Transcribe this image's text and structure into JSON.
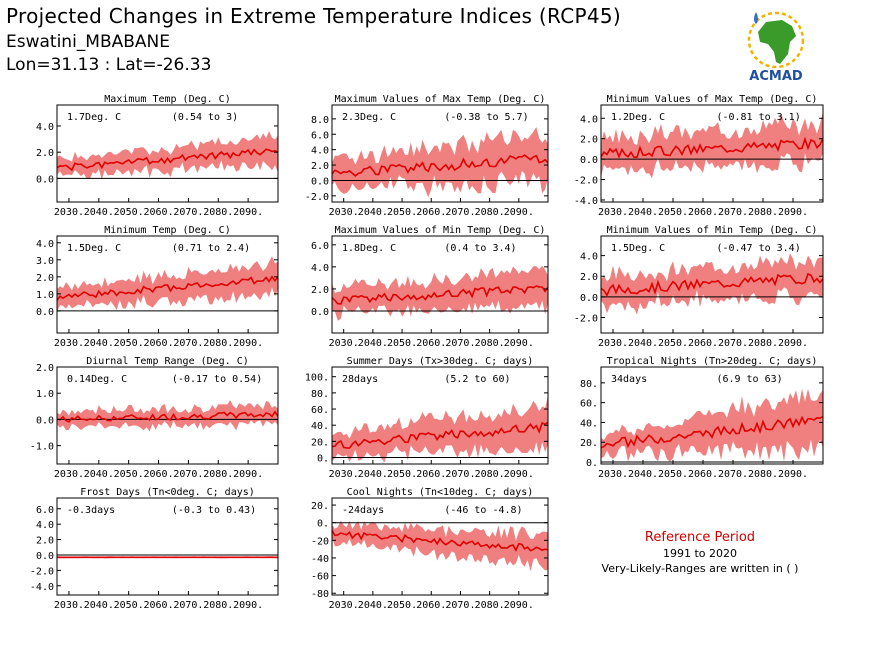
{
  "header": {
    "title": "Projected Changes in Extreme Temperature Indices (RCP45)",
    "location": "Eswatini_MBABANE",
    "coords": "Lon=31.13 : Lat=-26.33"
  },
  "logo": {
    "text": "ACMAD",
    "colors": {
      "africa": "#3a9a2a",
      "sun": "#f0b400",
      "text": "#1f4fa0"
    }
  },
  "reference": {
    "title": "Reference Period",
    "period": "1991 to 2020",
    "note": "Very-Likely-Ranges are written in ( )"
  },
  "colors": {
    "band": "#f08080",
    "line": "#e00000",
    "axis": "#000000"
  },
  "chart_data": [
    {
      "type": "area",
      "title": "Maximum Temp (Deg. C)",
      "stat": "1.7Deg. C",
      "range": "(0.54 to 3)",
      "yticks": [
        0,
        2,
        4
      ],
      "ytick_labels": [
        "0.0",
        "2.0",
        "4.0"
      ],
      "ylim": [
        -1.8,
        5.6
      ],
      "xticks": [
        "2030.",
        "2040.",
        "2050.",
        "2060.",
        "2070.",
        "2080.",
        "2090."
      ],
      "xlim": [
        2026,
        2100
      ],
      "mean": {
        "start": 0.8,
        "end": 2.1
      },
      "band_half": {
        "start": 0.6,
        "end": 1.1
      },
      "noise": 0.25,
      "seed": 1
    },
    {
      "type": "area",
      "title": "Maximum Values of Max Temp (Deg. C)",
      "stat": "2.3Deg. C",
      "range": "(-0.38 to 5.7)",
      "yticks": [
        -2,
        0,
        2,
        4,
        6,
        8
      ],
      "ytick_labels": [
        "-2.0",
        "0.0",
        "2.0",
        "4.0",
        "6.0",
        "8.0"
      ],
      "ylim": [
        -2.8,
        9.8
      ],
      "xticks": [
        "2030.",
        "2040.",
        "2050.",
        "2060.",
        "2070.",
        "2080.",
        "2090."
      ],
      "xlim": [
        2026,
        2100
      ],
      "mean": {
        "start": 1.0,
        "end": 2.8
      },
      "band_half": {
        "start": 2.0,
        "end": 3.0
      },
      "noise": 0.7,
      "seed": 2
    },
    {
      "type": "area",
      "title": "Minimum Values of Max Temp (Deg. C)",
      "stat": "1.2Deg. C",
      "range": "(-0.81 to 3.1)",
      "yticks": [
        -4,
        -2,
        0,
        2,
        4
      ],
      "ytick_labels": [
        "-4.0",
        "-2.0",
        "0.0",
        "2.0",
        "4.0"
      ],
      "ylim": [
        -4.2,
        5.3
      ],
      "xticks": [
        "2030.",
        "2040.",
        "2050.",
        "2060.",
        "2070.",
        "2080.",
        "2090."
      ],
      "xlim": [
        2026,
        2100
      ],
      "mean": {
        "start": 0.5,
        "end": 1.6
      },
      "band_half": {
        "start": 1.5,
        "end": 2.0
      },
      "noise": 0.5,
      "seed": 3
    },
    {
      "type": "area",
      "title": "Minimum Temp (Deg. C)",
      "stat": "1.5Deg. C",
      "range": "(0.71 to 2.4)",
      "yticks": [
        0,
        1,
        2,
        3,
        4
      ],
      "ytick_labels": [
        "0.0",
        "1.0",
        "2.0",
        "3.0",
        "4.0"
      ],
      "ylim": [
        -1.3,
        4.4
      ],
      "xticks": [
        "2030.",
        "2040.",
        "2050.",
        "2060.",
        "2070.",
        "2080.",
        "2090."
      ],
      "xlim": [
        2026,
        2100
      ],
      "mean": {
        "start": 0.8,
        "end": 1.9
      },
      "band_half": {
        "start": 0.6,
        "end": 0.9
      },
      "noise": 0.2,
      "seed": 4
    },
    {
      "type": "area",
      "title": "Maximum Values of Min Temp (Deg. C)",
      "stat": "1.8Deg. C",
      "range": "(0.4 to 3.4)",
      "yticks": [
        0,
        2,
        4,
        6
      ],
      "ytick_labels": [
        "0.0",
        "2.0",
        "4.0",
        "6.0"
      ],
      "ylim": [
        -2.0,
        6.8
      ],
      "xticks": [
        "2030.",
        "2040.",
        "2050.",
        "2060.",
        "2070.",
        "2080.",
        "2090."
      ],
      "xlim": [
        2026,
        2100
      ],
      "mean": {
        "start": 0.9,
        "end": 2.1
      },
      "band_half": {
        "start": 1.1,
        "end": 1.6
      },
      "noise": 0.4,
      "seed": 5
    },
    {
      "type": "area",
      "title": "Minimum Values of Min Temp (Deg. C)",
      "stat": "1.5Deg. C",
      "range": "(-0.47 to 3.4)",
      "yticks": [
        -2,
        0,
        2,
        4
      ],
      "ytick_labels": [
        "-2.0",
        "0.0",
        "2.0",
        "4.0"
      ],
      "ylim": [
        -3.5,
        5.9
      ],
      "xticks": [
        "2030.",
        "2040.",
        "2050.",
        "2060.",
        "2070.",
        "2080.",
        "2090."
      ],
      "xlim": [
        2026,
        2100
      ],
      "mean": {
        "start": 0.6,
        "end": 1.9
      },
      "band_half": {
        "start": 1.4,
        "end": 1.8
      },
      "noise": 0.5,
      "seed": 6
    },
    {
      "type": "area",
      "title": "Diurnal Temp Range (Deg. C)",
      "stat": "0.14Deg. C",
      "range": "(-0.17 to 0.54)",
      "yticks": [
        -1,
        0,
        1,
        2
      ],
      "ytick_labels": [
        "-1.0",
        "0.0",
        "1.0",
        "2.0"
      ],
      "ylim": [
        -1.7,
        2.0
      ],
      "xticks": [
        "2030.",
        "2040.",
        "2050.",
        "2060.",
        "2070.",
        "2080.",
        "2090."
      ],
      "xlim": [
        2026,
        2100
      ],
      "mean": {
        "start": 0.0,
        "end": 0.2
      },
      "band_half": {
        "start": 0.3,
        "end": 0.35
      },
      "noise": 0.12,
      "seed": 7
    },
    {
      "type": "area",
      "title": "Summer Days (Tx>30deg. C; days)",
      "stat": "28days",
      "range": "(5.2 to 60)",
      "yticks": [
        0,
        20,
        40,
        60,
        80,
        100
      ],
      "ytick_labels": [
        "0.",
        "20.",
        "40.",
        "60.",
        "80.",
        "100."
      ],
      "ylim": [
        -8,
        112
      ],
      "xticks": [
        "2030.",
        "2040.",
        "2050.",
        "2060.",
        "2070.",
        "2080.",
        "2090."
      ],
      "xlim": [
        2026,
        2100
      ],
      "mean": {
        "start": 15,
        "end": 38
      },
      "band_half": {
        "start": 14,
        "end": 26
      },
      "noise": 6,
      "seed": 8
    },
    {
      "type": "area",
      "title": "Tropical Nights (Tn>20deg. C; days)",
      "stat": "34days",
      "range": "(6.9 to 63)",
      "yticks": [
        0,
        20,
        40,
        60,
        80
      ],
      "ytick_labels": [
        "0.",
        "20.",
        "40.",
        "60.",
        "80."
      ],
      "ylim": [
        -2,
        96
      ],
      "xticks": [
        "2030.",
        "2040.",
        "2050.",
        "2060.",
        "2070.",
        "2080.",
        "2090."
      ],
      "xlim": [
        2026,
        2100
      ],
      "mean": {
        "start": 17,
        "end": 43
      },
      "band_half": {
        "start": 9,
        "end": 28
      },
      "noise": 5,
      "seed": 9
    },
    {
      "type": "area",
      "title": "Frost Days (Tn<0deg. C; days)",
      "stat": "-0.3days",
      "range": "(-0.3 to 0.43)",
      "yticks": [
        -4,
        -2,
        0,
        2,
        4,
        6
      ],
      "ytick_labels": [
        "-4.0",
        "-2.0",
        "0.0",
        "2.0",
        "4.0",
        "6.0"
      ],
      "ylim": [
        -5.2,
        7.4
      ],
      "xticks": [
        "2030.",
        "2040.",
        "2050.",
        "2060.",
        "2070.",
        "2080.",
        "2090."
      ],
      "xlim": [
        2026,
        2100
      ],
      "mean": {
        "start": -0.3,
        "end": -0.3
      },
      "band_half": {
        "start": 0.1,
        "end": 0.1
      },
      "noise": 0.0,
      "seed": 10
    },
    {
      "type": "area",
      "title": "Cool Nights (Tn<10deg. C; days)",
      "stat": "-24days",
      "range": "(-46 to -4.8)",
      "yticks": [
        -80,
        -60,
        -40,
        -20,
        0,
        20
      ],
      "ytick_labels": [
        "-80",
        "-60",
        "-40",
        "-20",
        "0.",
        "20."
      ],
      "ylim": [
        -82,
        28
      ],
      "xticks": [
        "2030.",
        "2040.",
        "2050.",
        "2060.",
        "2070.",
        "2080.",
        "2090."
      ],
      "xlim": [
        2026,
        2100
      ],
      "mean": {
        "start": -12,
        "end": -30
      },
      "band_half": {
        "start": 10,
        "end": 18
      },
      "noise": 4,
      "seed": 11
    }
  ]
}
